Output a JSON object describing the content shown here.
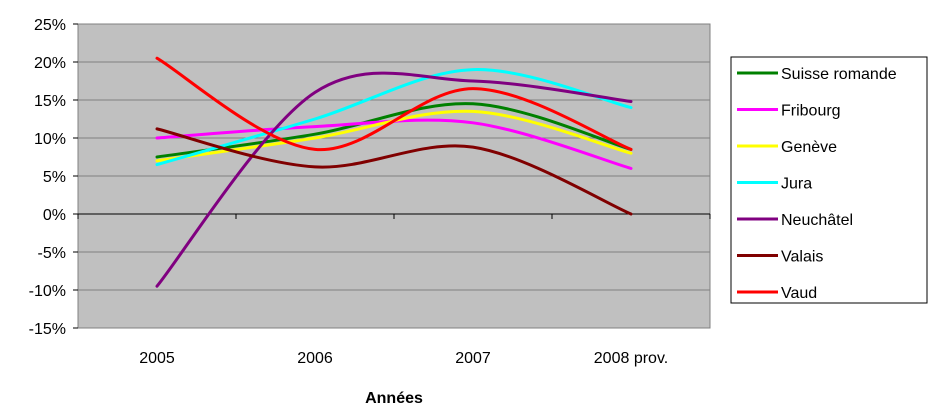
{
  "chart_data": {
    "type": "line",
    "title": "",
    "xlabel": "Années",
    "ylabel": "",
    "categories": [
      "2005",
      "2006",
      "2007",
      "2008 prov."
    ],
    "yticks": [
      "25%",
      "20%",
      "15%",
      "10%",
      "5%",
      "0%",
      "-5%",
      "-10%",
      "-15%"
    ],
    "ylim": [
      -15,
      25
    ],
    "ytick_step": 5,
    "unit": "%",
    "smooth": true,
    "grid": "horizontal",
    "plot_background": "#c0c0c0",
    "legend_position": "right",
    "series": [
      {
        "name": "Suisse romande",
        "color": "#008000",
        "values": [
          7.5,
          10.5,
          14.5,
          8.5
        ]
      },
      {
        "name": "Fribourg",
        "color": "#ff00ff",
        "values": [
          10.0,
          11.5,
          12.0,
          6.0
        ]
      },
      {
        "name": "Genève",
        "color": "#ffff00",
        "values": [
          7.0,
          10.0,
          13.5,
          8.0
        ]
      },
      {
        "name": "Jura",
        "color": "#00ffff",
        "values": [
          6.5,
          12.5,
          19.0,
          14.0
        ]
      },
      {
        "name": "Neuchâtel",
        "color": "#800080",
        "values": [
          -9.5,
          16.0,
          17.5,
          14.8
        ]
      },
      {
        "name": "Valais",
        "color": "#800000",
        "values": [
          11.2,
          6.2,
          8.8,
          0.0
        ]
      },
      {
        "name": "Vaud",
        "color": "#ff0000",
        "values": [
          20.5,
          8.5,
          16.5,
          8.5
        ]
      }
    ]
  }
}
